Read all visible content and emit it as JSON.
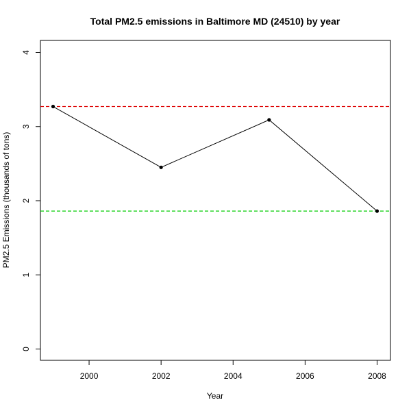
{
  "chart_data": {
    "type": "line",
    "title": "Total PM2.5 emissions in Baltimore MD (24510) by year",
    "xlabel": "Year",
    "ylabel": "PM2.5 Emissions (thousands of tons)",
    "x": [
      1999,
      2002,
      2005,
      2008
    ],
    "series": [
      {
        "values": [
          3.27,
          2.45,
          3.09,
          1.86
        ],
        "color": "#000000"
      }
    ],
    "reference_lines": [
      {
        "y": 3.27,
        "color": "#dd0000",
        "style": "dashed"
      },
      {
        "y": 1.86,
        "color": "#00cc00",
        "style": "dashed"
      }
    ],
    "xlim": [
      1999,
      2008
    ],
    "ylim": [
      0,
      4
    ],
    "x_ticks": [
      2000,
      2002,
      2004,
      2006,
      2008
    ],
    "y_ticks": [
      0,
      1,
      2,
      3,
      4
    ],
    "grid": false,
    "legend": "none"
  }
}
